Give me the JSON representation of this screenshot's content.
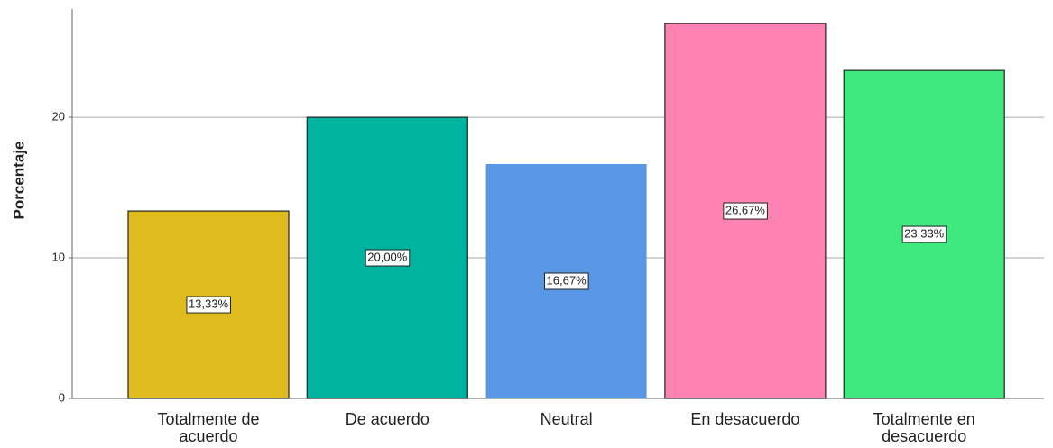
{
  "chart_data": {
    "type": "bar",
    "y_label": "Porcentaje",
    "categories": [
      "Totalmente de acuerdo",
      "De acuerdo",
      "Neutral",
      "En desacuerdo",
      "Totalmente en desacuerdo"
    ],
    "values": [
      13.33,
      20.0,
      16.67,
      26.67,
      23.33
    ],
    "value_labels": [
      "13,33%",
      "20,00%",
      "16,67%",
      "26,67%",
      "23,33%"
    ],
    "colors": [
      "#e0bb1e",
      "#00b39f",
      "#5897e6",
      "#fe82b4",
      "#40e97e"
    ],
    "ylim": [
      0,
      27.7
    ],
    "yticks": [
      0,
      10,
      20
    ],
    "grid": true
  }
}
